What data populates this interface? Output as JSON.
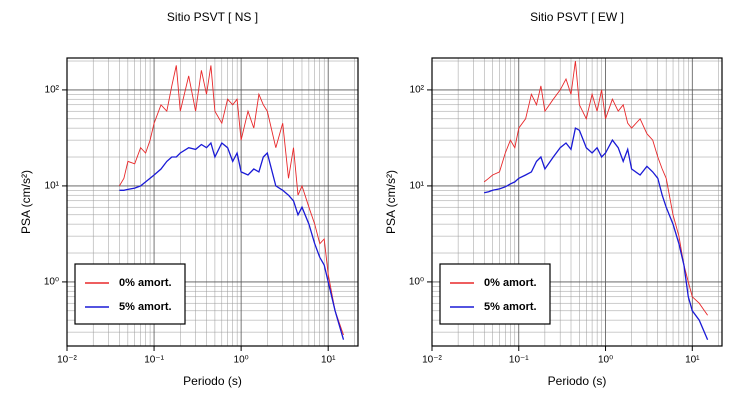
{
  "chart_data": [
    {
      "type": "line",
      "title": "Sitio PSVT [ NS ]",
      "xlabel": "Periodo (s)",
      "ylabel": "PSA (cm/s²)",
      "log_x": true,
      "log_y": true,
      "grid": true,
      "legend": "lower left",
      "xlim": [
        0.01,
        22
      ],
      "ylim": [
        0.215,
        215
      ],
      "xticks": [
        {
          "value": 0.01,
          "label": "10⁻²"
        },
        {
          "value": 0.1,
          "label": "10⁻¹"
        },
        {
          "value": 1,
          "label": "10⁰"
        },
        {
          "value": 10,
          "label": "10¹"
        }
      ],
      "yticks": [
        {
          "value": 1,
          "label": "10⁰"
        },
        {
          "value": 10,
          "label": "10¹"
        },
        {
          "value": 100,
          "label": "10²"
        }
      ],
      "x": [
        0.04,
        0.045,
        0.05,
        0.06,
        0.07,
        0.08,
        0.09,
        0.1,
        0.12,
        0.14,
        0.16,
        0.18,
        0.2,
        0.25,
        0.3,
        0.35,
        0.4,
        0.45,
        0.5,
        0.6,
        0.7,
        0.8,
        0.9,
        1,
        1.2,
        1.4,
        1.6,
        1.8,
        2,
        2.5,
        3,
        3.5,
        4,
        4.5,
        5,
        6,
        7,
        8,
        9,
        10,
        12,
        15
      ],
      "series": [
        {
          "name": "0% amort.",
          "color": "#e8282a",
          "values": [
            10,
            12,
            18,
            17,
            25,
            22,
            30,
            45,
            70,
            60,
            110,
            180,
            60,
            140,
            60,
            160,
            90,
            180,
            60,
            45,
            80,
            70,
            80,
            30,
            60,
            40,
            90,
            70,
            60,
            25,
            45,
            12,
            25,
            8,
            10,
            6,
            4,
            2.5,
            2.8,
            1.2,
            0.5,
            0.28
          ]
        },
        {
          "name": "5% amort.",
          "color": "#1a1ad6",
          "values": [
            9,
            9,
            9.2,
            9.5,
            10,
            11,
            12,
            13,
            15,
            18,
            20,
            20,
            22,
            25,
            24,
            27,
            25,
            28,
            20,
            28,
            25,
            18,
            22,
            14,
            13,
            15,
            14,
            20,
            22,
            10,
            9,
            8,
            7,
            5,
            6,
            4,
            2.5,
            1.8,
            1.5,
            1.0,
            0.5,
            0.25
          ]
        }
      ]
    },
    {
      "type": "line",
      "title": "Sitio PSVT [ EW ]",
      "xlabel": "Periodo (s)",
      "ylabel": "PSA (cm/s²)",
      "log_x": true,
      "log_y": true,
      "grid": true,
      "legend": "lower left",
      "xlim": [
        0.01,
        22
      ],
      "ylim": [
        0.215,
        215
      ],
      "xticks": [
        {
          "value": 0.01,
          "label": "10⁻²"
        },
        {
          "value": 0.1,
          "label": "10⁻¹"
        },
        {
          "value": 1,
          "label": "10⁰"
        },
        {
          "value": 10,
          "label": "10¹"
        }
      ],
      "yticks": [
        {
          "value": 1,
          "label": "10⁰"
        },
        {
          "value": 10,
          "label": "10¹"
        },
        {
          "value": 100,
          "label": "10²"
        }
      ],
      "x": [
        0.04,
        0.045,
        0.05,
        0.06,
        0.07,
        0.08,
        0.09,
        0.1,
        0.12,
        0.14,
        0.16,
        0.18,
        0.2,
        0.25,
        0.3,
        0.35,
        0.4,
        0.45,
        0.5,
        0.6,
        0.7,
        0.8,
        0.9,
        1,
        1.2,
        1.4,
        1.6,
        1.8,
        2,
        2.5,
        3,
        3.5,
        4,
        4.5,
        5,
        6,
        7,
        8,
        9,
        10,
        12,
        15
      ],
      "series": [
        {
          "name": "0% amort.",
          "color": "#e8282a",
          "values": [
            11,
            12,
            13,
            14,
            22,
            30,
            25,
            40,
            50,
            90,
            70,
            110,
            60,
            80,
            100,
            130,
            90,
            200,
            70,
            50,
            90,
            60,
            100,
            50,
            80,
            60,
            70,
            45,
            40,
            50,
            35,
            30,
            20,
            15,
            12,
            5,
            3,
            1.5,
            1.0,
            0.7,
            0.6,
            0.45
          ]
        },
        {
          "name": "5% amort.",
          "color": "#1a1ad6",
          "values": [
            8.5,
            8.7,
            9,
            9.3,
            9.8,
            10.5,
            11,
            12,
            13,
            14,
            18,
            20,
            15,
            20,
            25,
            28,
            24,
            40,
            38,
            25,
            22,
            25,
            20,
            22,
            30,
            25,
            18,
            24,
            15,
            13,
            16,
            14,
            12,
            8,
            6,
            4,
            2.5,
            1.5,
            0.7,
            0.5,
            0.4,
            0.25
          ]
        }
      ]
    }
  ]
}
